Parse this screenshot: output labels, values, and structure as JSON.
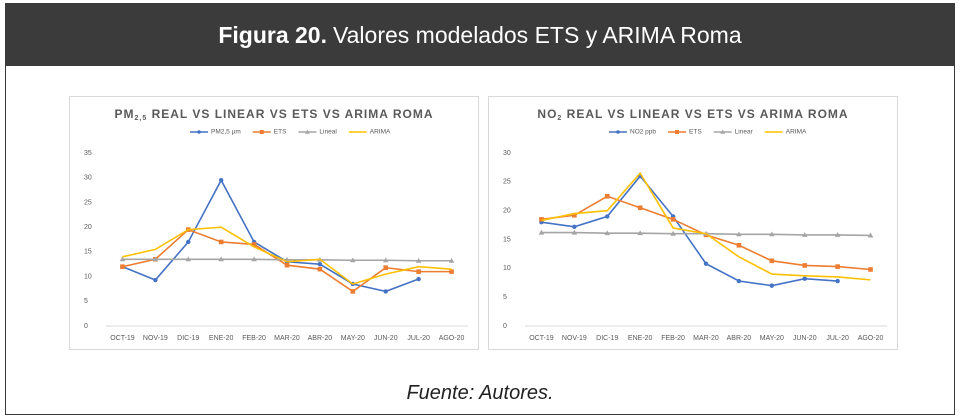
{
  "figure": {
    "label": "Figura 20.",
    "title": "Valores modelados ETS y ARIMA Roma",
    "source": "Fuente: Autores."
  },
  "chart_data": [
    {
      "type": "line",
      "title": [
        "PM",
        "2,5",
        " REAL VS LINEAR VS ETS VS ARIMA ROMA"
      ],
      "categories": [
        "OCT-19",
        "NOV-19",
        "DIC-19",
        "ENE-20",
        "FEB-20",
        "MAR-20",
        "ABR-20",
        "MAY-20",
        "JUN-20",
        "JUL-20",
        "AGO-20"
      ],
      "ylim": [
        0,
        35
      ],
      "yticks": [
        0,
        5,
        10,
        15,
        20,
        25,
        30,
        35
      ],
      "series": [
        {
          "name": "PM2,5 µm",
          "color": "#4472c4",
          "marker": "circle",
          "values": [
            12,
            9.3,
            17,
            29.5,
            17,
            13,
            12.5,
            8.5,
            7,
            9.5,
            null
          ]
        },
        {
          "name": "ETS",
          "color": "#ed7d31",
          "marker": "square",
          "values": [
            12,
            13.5,
            19.5,
            17,
            16.5,
            12.3,
            11.5,
            7,
            11.8,
            11,
            11
          ]
        },
        {
          "name": "Lineal",
          "color": "#a5a5a5",
          "marker": "triangle",
          "values": [
            13.5,
            13.5,
            13.5,
            13.5,
            13.5,
            13.4,
            13.4,
            13.3,
            13.3,
            13.2,
            13.2
          ]
        },
        {
          "name": "ARIMA",
          "color": "#ffc000",
          "marker": "none",
          "values": [
            14,
            15.5,
            19.5,
            20,
            16,
            13,
            13.5,
            8.5,
            10.5,
            12,
            11.5
          ]
        }
      ]
    },
    {
      "type": "line",
      "title": [
        "NO",
        "2",
        " REAL VS LINEAR VS ETS VS ARIMA ROMA"
      ],
      "categories": [
        "OCT-19",
        "NOV-19",
        "DIC-19",
        "ENE-20",
        "FEB-20",
        "MAR-20",
        "ABR-20",
        "MAY-20",
        "JUN-20",
        "JUL-20",
        "AGO-20"
      ],
      "ylim": [
        0,
        30
      ],
      "yticks": [
        0,
        5,
        10,
        15,
        20,
        25,
        30
      ],
      "series": [
        {
          "name": "NO2 ppb",
          "color": "#4472c4",
          "marker": "circle",
          "values": [
            18,
            17.2,
            19,
            26,
            19,
            10.8,
            7.8,
            7,
            8.2,
            7.8,
            null
          ]
        },
        {
          "name": "ETS",
          "color": "#ed7d31",
          "marker": "square",
          "values": [
            18.5,
            19.2,
            22.5,
            20.5,
            18.5,
            15.8,
            14,
            11.3,
            10.5,
            10.3,
            9.8
          ]
        },
        {
          "name": "Linear",
          "color": "#a5a5a5",
          "marker": "triangle",
          "values": [
            16.2,
            16.2,
            16.1,
            16.1,
            16,
            16,
            15.9,
            15.9,
            15.8,
            15.8,
            15.7
          ]
        },
        {
          "name": "ARIMA",
          "color": "#ffc000",
          "marker": "none",
          "values": [
            18.3,
            19.5,
            20,
            26.5,
            17,
            16,
            12,
            9,
            8.7,
            8.5,
            8
          ]
        }
      ]
    }
  ]
}
